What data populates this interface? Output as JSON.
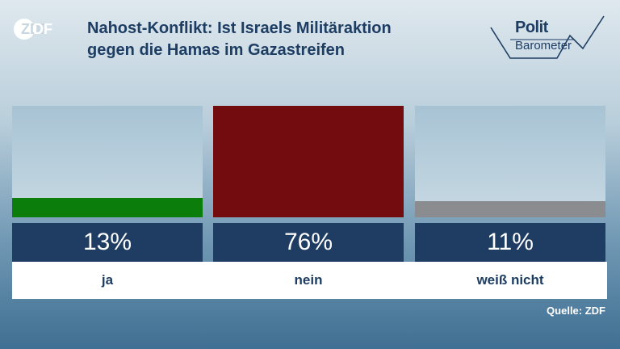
{
  "branding": {
    "broadcaster_logo": "ZDF",
    "program_logo_line1": "Polit",
    "program_logo_line2": "Barometer"
  },
  "title_lines": [
    "Nahost-Konflikt: Ist Israels Militäraktion",
    "gegen die Hamas im Gazastreifen"
  ],
  "chart_data": {
    "type": "bar",
    "categories": [
      "ja",
      "nein",
      "weiß nicht"
    ],
    "values": [
      13,
      76,
      11
    ],
    "value_labels": [
      "13%",
      "76%",
      "11%"
    ],
    "unit": "%",
    "ylim": [
      0,
      76
    ],
    "colors": [
      "#0b7d0b",
      "#720c0e",
      "#8a8c90"
    ]
  },
  "source": "Quelle: ZDF"
}
